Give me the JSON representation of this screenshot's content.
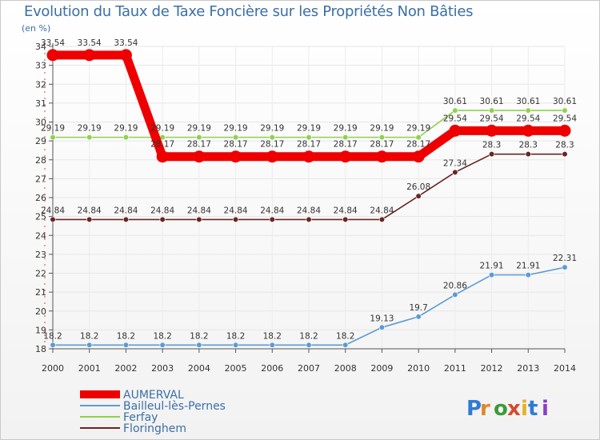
{
  "title": "Evolution du Taux de Taxe Foncière sur les Propriétés Non Bâties",
  "unit": "(en %)",
  "logo": "Proxiti",
  "chart_data": {
    "type": "line",
    "title": "Evolution du Taux de Taxe Foncière sur les Propriétés Non Bâties",
    "ylabel": "(en %)",
    "xlabel": "",
    "x": [
      2000,
      2001,
      2002,
      2003,
      2004,
      2005,
      2006,
      2007,
      2008,
      2009,
      2010,
      2011,
      2012,
      2013,
      2014
    ],
    "ylim": [
      18,
      34
    ],
    "yticks": [
      18,
      19,
      20,
      21,
      22,
      23,
      24,
      25,
      26,
      27,
      28,
      29,
      30,
      31,
      32,
      33,
      34
    ],
    "series": [
      {
        "name": "AUMERVAL",
        "color": "#ee0000",
        "values": [
          33.54,
          33.54,
          33.54,
          28.17,
          28.17,
          28.17,
          28.17,
          28.17,
          28.17,
          28.17,
          28.17,
          29.54,
          29.54,
          29.54,
          29.54
        ]
      },
      {
        "name": "Bailleul-lès-Pernes",
        "color": "#5b9bd5",
        "values": [
          18.2,
          18.2,
          18.2,
          18.2,
          18.2,
          18.2,
          18.2,
          18.2,
          18.2,
          19.13,
          19.7,
          20.86,
          21.91,
          21.91,
          22.31
        ]
      },
      {
        "name": "Ferfay",
        "color": "#8fd14f",
        "values": [
          29.19,
          29.19,
          29.19,
          29.19,
          29.19,
          29.19,
          29.19,
          29.19,
          29.19,
          29.19,
          29.19,
          30.61,
          30.61,
          30.61,
          30.61
        ]
      },
      {
        "name": "Floringhem",
        "color": "#6b2424",
        "values": [
          24.84,
          24.84,
          24.84,
          24.84,
          24.84,
          24.84,
          24.84,
          24.84,
          24.84,
          24.84,
          26.08,
          27.34,
          28.3,
          28.3,
          28.3
        ]
      }
    ],
    "legend": "bottom-left"
  }
}
